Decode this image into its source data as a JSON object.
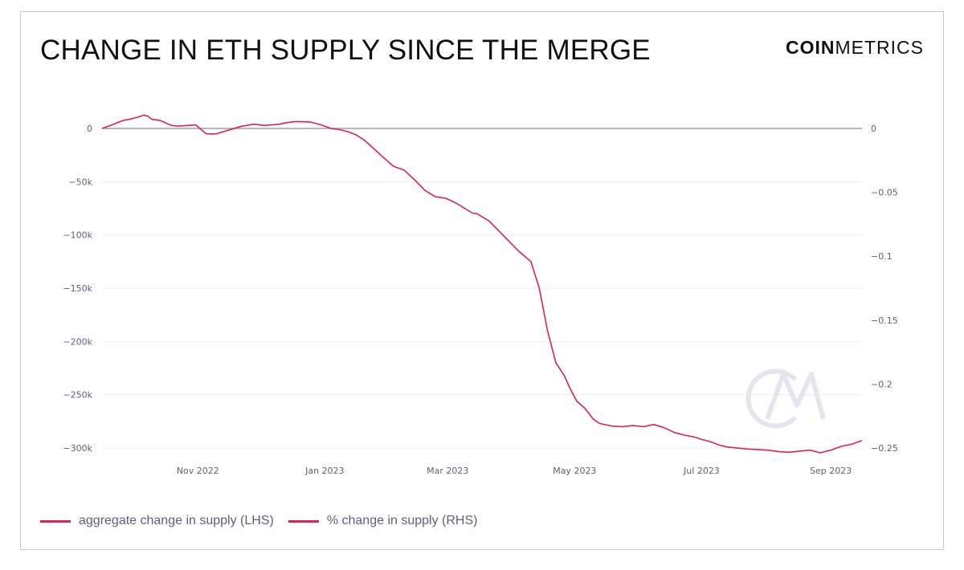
{
  "title": "CHANGE IN ETH SUPPLY SINCE THE MERGE",
  "brand": {
    "bold": "COIN",
    "light": "METRICS"
  },
  "colors": {
    "series": "#e0224e",
    "zero_line": "#9a9cb8",
    "grid": "#ececf2",
    "watermark": "#e4e6ef"
  },
  "watermark_icon": "coinmetrics-cm-watermark-icon",
  "chart_data": {
    "type": "line",
    "title": "CHANGE IN ETH SUPPLY SINCE THE MERGE",
    "xlabel": "",
    "ylabel_left": "",
    "ylabel_right": "",
    "x_range_days": [
      0,
      365
    ],
    "ylim_left": [
      -300000,
      0
    ],
    "ylim_right": [
      -0.25,
      0
    ],
    "grid": true,
    "legend_position": "bottom-left",
    "x_ticks": [
      {
        "day": 46,
        "label": "Nov 2022"
      },
      {
        "day": 107,
        "label": "Jan 2023"
      },
      {
        "day": 166,
        "label": "Mar 2023"
      },
      {
        "day": 227,
        "label": "May 2023"
      },
      {
        "day": 288,
        "label": "Jul 2023"
      },
      {
        "day": 350,
        "label": "Sep 2023"
      }
    ],
    "y_ticks_left": [
      {
        "value": 0,
        "label": "0"
      },
      {
        "value": -50000,
        "label": "−50k"
      },
      {
        "value": -100000,
        "label": "−100k"
      },
      {
        "value": -150000,
        "label": "−150k"
      },
      {
        "value": -200000,
        "label": "−200k"
      },
      {
        "value": -250000,
        "label": "−250k"
      },
      {
        "value": -300000,
        "label": "−300k"
      }
    ],
    "y_ticks_right": [
      {
        "value": 0,
        "label": "0"
      },
      {
        "value": -0.05,
        "label": "−0.05"
      },
      {
        "value": -0.1,
        "label": "−0.1"
      },
      {
        "value": -0.15,
        "label": "−0.15"
      },
      {
        "value": -0.2,
        "label": "−0.2"
      },
      {
        "value": -0.25,
        "label": "−0.25"
      }
    ],
    "series": [
      {
        "name": "aggregate change in supply (LHS)",
        "axis": "left",
        "x": [
          0,
          5,
          10,
          13,
          17,
          20,
          22,
          24,
          28,
          33,
          36,
          41,
          45,
          50,
          53,
          55,
          60,
          67,
          73,
          78,
          82,
          85,
          89,
          93,
          100,
          105,
          110,
          115,
          118,
          122,
          126,
          130,
          135,
          140,
          145,
          150,
          155,
          160,
          165,
          170,
          175,
          178,
          180,
          186,
          195,
          200,
          206,
          210,
          214,
          218,
          222,
          225,
          228,
          232,
          234,
          236,
          239,
          245,
          250,
          255,
          260,
          265,
          270,
          275,
          280,
          285,
          288,
          292,
          296,
          300,
          310,
          320,
          325,
          330,
          340,
          345,
          350,
          355,
          360,
          365
        ],
        "values": [
          0,
          3500,
          7500,
          8500,
          10500,
          12500,
          11500,
          8500,
          7500,
          3000,
          2200,
          2800,
          3300,
          -5000,
          -5200,
          -5000,
          -2000,
          2000,
          4000,
          2800,
          3500,
          4000,
          5500,
          6500,
          6000,
          3500,
          0,
          -1500,
          -3000,
          -6000,
          -11000,
          -18000,
          -27000,
          -35500,
          -39000,
          -48000,
          -58000,
          -64000,
          -65500,
          -70000,
          -76000,
          -79500,
          -80000,
          -87000,
          -105000,
          -115000,
          -125000,
          -150000,
          -190000,
          -220000,
          -232000,
          -245000,
          -256000,
          -263000,
          -268000,
          -273000,
          -277000,
          -279500,
          -280000,
          -279000,
          -280000,
          -278000,
          -281000,
          -285500,
          -288000,
          -290000,
          -292000,
          -294000,
          -297000,
          -299000,
          -301000,
          -302000,
          -303500,
          -304000,
          -302000,
          -304500,
          -302000,
          -298500,
          -296500,
          -293000
        ]
      },
      {
        "name": "% change in supply (RHS)",
        "axis": "right",
        "note": "plotted on right axis, overlapping LHS series"
      }
    ]
  },
  "legend": [
    {
      "label": "aggregate change in supply (LHS)",
      "color": "#e0224e"
    },
    {
      "label": "% change in supply (RHS)",
      "color": "#e0224e"
    }
  ]
}
